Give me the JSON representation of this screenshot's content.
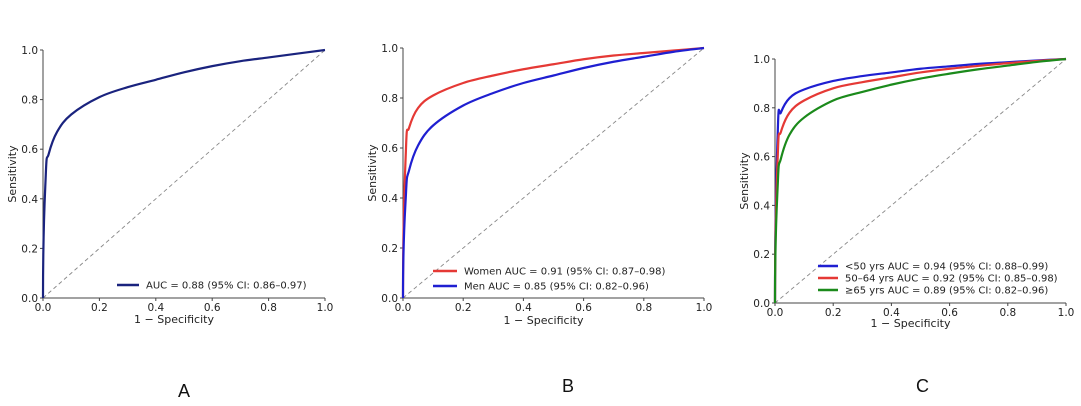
{
  "chart_data": [
    {
      "type": "line",
      "panel": "A",
      "xlabel": "1 − Specificity",
      "ylabel": "Sensitivity",
      "xlim": [
        0,
        1
      ],
      "ylim": [
        0,
        1
      ],
      "ticks": [
        "0.0",
        "0.2",
        "0.4",
        "0.6",
        "0.8",
        "1.0"
      ],
      "reference_line": "diagonal dashed",
      "legend_position": "bottom-right",
      "series": [
        {
          "name": "AUC = 0.88 (95% CI: 0.86–0.97)",
          "color": "#1a237e",
          "x": [
            0,
            0.01,
            0.02,
            0.05,
            0.1,
            0.2,
            0.3,
            0.4,
            0.5,
            0.6,
            0.7,
            0.8,
            0.9,
            1.0
          ],
          "y": [
            0,
            0.5,
            0.58,
            0.67,
            0.74,
            0.81,
            0.85,
            0.88,
            0.91,
            0.935,
            0.955,
            0.97,
            0.985,
            1.0
          ]
        }
      ]
    },
    {
      "type": "line",
      "panel": "B",
      "xlabel": "1 − Specificity",
      "ylabel": "Sensitivity",
      "xlim": [
        0,
        1
      ],
      "ylim": [
        0,
        1
      ],
      "ticks": [
        "0.0",
        "0.2",
        "0.4",
        "0.6",
        "0.8",
        "1.0"
      ],
      "reference_line": "diagonal dashed",
      "legend_position": "bottom-right",
      "series": [
        {
          "name": "Women  AUC = 0.91 (95% CI: 0.87–0.98)",
          "color": "#e53935",
          "x": [
            0,
            0.01,
            0.02,
            0.05,
            0.1,
            0.2,
            0.3,
            0.4,
            0.5,
            0.6,
            0.7,
            0.8,
            0.9,
            1.0
          ],
          "y": [
            0,
            0.6,
            0.68,
            0.76,
            0.81,
            0.86,
            0.89,
            0.915,
            0.935,
            0.955,
            0.97,
            0.98,
            0.99,
            1.0
          ]
        },
        {
          "name": "Men  AUC = 0.85 (95% CI: 0.82–0.96)",
          "color": "#1f1fd1",
          "x": [
            0,
            0.01,
            0.02,
            0.05,
            0.1,
            0.2,
            0.3,
            0.4,
            0.5,
            0.6,
            0.7,
            0.8,
            0.9,
            1.0
          ],
          "y": [
            0,
            0.42,
            0.51,
            0.61,
            0.69,
            0.77,
            0.82,
            0.86,
            0.89,
            0.92,
            0.945,
            0.965,
            0.985,
            1.0
          ]
        }
      ]
    },
    {
      "type": "line",
      "panel": "C",
      "xlabel": "1 − Specificity",
      "ylabel": "Sensitivity",
      "xlim": [
        0,
        1
      ],
      "ylim": [
        0,
        1
      ],
      "ticks": [
        "0.0",
        "0.2",
        "0.4",
        "0.6",
        "0.8",
        "1.0"
      ],
      "reference_line": "diagonal dashed",
      "legend_position": "bottom-right",
      "series": [
        {
          "name": "<50 yrs  AUC = 0.94 (95% CI: 0.88–0.99)",
          "color": "#1f1fd1",
          "x": [
            0,
            0.01,
            0.02,
            0.05,
            0.1,
            0.2,
            0.3,
            0.4,
            0.5,
            0.6,
            0.7,
            0.8,
            0.9,
            1.0
          ],
          "y": [
            0,
            0.72,
            0.78,
            0.84,
            0.875,
            0.91,
            0.93,
            0.945,
            0.96,
            0.97,
            0.98,
            0.987,
            0.994,
            1.0
          ]
        },
        {
          "name": "50–64 yrs  AUC = 0.92 (95% CI: 0.85–0.98)",
          "color": "#e53935",
          "x": [
            0,
            0.01,
            0.02,
            0.05,
            0.1,
            0.2,
            0.3,
            0.4,
            0.5,
            0.6,
            0.7,
            0.8,
            0.9,
            1.0
          ],
          "y": [
            0,
            0.62,
            0.7,
            0.78,
            0.83,
            0.88,
            0.905,
            0.925,
            0.945,
            0.96,
            0.972,
            0.983,
            0.992,
            1.0
          ]
        },
        {
          "name": "≥65 yrs  AUC = 0.89 (95% CI: 0.82–0.96)",
          "color": "#1b8a1b",
          "x": [
            0,
            0.01,
            0.02,
            0.05,
            0.1,
            0.2,
            0.3,
            0.4,
            0.5,
            0.6,
            0.7,
            0.8,
            0.9,
            1.0
          ],
          "y": [
            0,
            0.5,
            0.59,
            0.69,
            0.76,
            0.83,
            0.865,
            0.895,
            0.92,
            0.94,
            0.958,
            0.973,
            0.988,
            1.0
          ]
        }
      ]
    }
  ],
  "panel_labels": {
    "a": "A",
    "b": "B",
    "c": "C"
  }
}
